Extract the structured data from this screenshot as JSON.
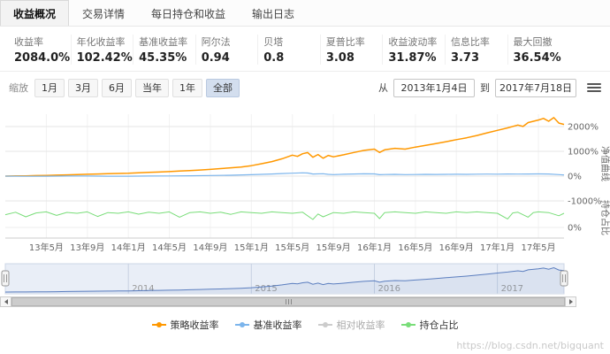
{
  "tabs": [
    {
      "label": "收益概况",
      "active": true
    },
    {
      "label": "交易详情"
    },
    {
      "label": "每日持仓和收益"
    },
    {
      "label": "输出日志"
    }
  ],
  "stats": [
    {
      "label": "收益率",
      "value": "2084.0%"
    },
    {
      "label": "年化收益率",
      "value": "102.42%"
    },
    {
      "label": "基准收益率",
      "value": "45.35%"
    },
    {
      "label": "阿尔法",
      "value": "0.94"
    },
    {
      "label": "贝塔",
      "value": "0.8"
    },
    {
      "label": "夏普比率",
      "value": "3.08"
    },
    {
      "label": "收益波动率",
      "value": "31.87%"
    },
    {
      "label": "信息比率",
      "value": "3.73"
    },
    {
      "label": "最大回撤",
      "value": "36.54%"
    }
  ],
  "toolbar": {
    "zoom_label": "缩放",
    "buttons": [
      {
        "label": "1月"
      },
      {
        "label": "3月"
      },
      {
        "label": "6月"
      },
      {
        "label": "当年"
      },
      {
        "label": "1年"
      },
      {
        "label": "全部",
        "selected": true
      }
    ],
    "from_label": "从",
    "from_value": "2013年1月4日",
    "to_label": "到",
    "to_value": "2017年7月18日"
  },
  "chart_data": {
    "type": "line",
    "x_unit": "months_since_2013_01",
    "x_range": [
      0,
      54.5
    ],
    "x_ticks": [
      {
        "m": 4,
        "label": "13年5月"
      },
      {
        "m": 8,
        "label": "13年9月"
      },
      {
        "m": 12,
        "label": "14年1月"
      },
      {
        "m": 16,
        "label": "14年5月"
      },
      {
        "m": 20,
        "label": "14年9月"
      },
      {
        "m": 24,
        "label": "15年1月"
      },
      {
        "m": 28,
        "label": "15年5月"
      },
      {
        "m": 32,
        "label": "15年9月"
      },
      {
        "m": 36,
        "label": "16年1月"
      },
      {
        "m": 40,
        "label": "16年5月"
      },
      {
        "m": 44,
        "label": "16年9月"
      },
      {
        "m": 48,
        "label": "17年1月"
      },
      {
        "m": 52,
        "label": "17年5月"
      }
    ],
    "y_axis_main": {
      "title": "净值曲线",
      "ticks": [
        {
          "v": 2000,
          "label": "2000%"
        },
        {
          "v": 1000,
          "label": "1000%"
        },
        {
          "v": 0,
          "label": "0%"
        },
        {
          "v": -1000,
          "label": "-1000%"
        }
      ]
    },
    "y_axis_position": {
      "title": "持仓占比",
      "ticks": [
        {
          "v": 0,
          "label": "0%"
        }
      ]
    },
    "series": [
      {
        "id": "strategy",
        "name": "策略收益率",
        "color": "#ff9800",
        "axis": "main",
        "width": 1.5,
        "points": [
          [
            0,
            0
          ],
          [
            1,
            6
          ],
          [
            2,
            12
          ],
          [
            3,
            20
          ],
          [
            4,
            28
          ],
          [
            5,
            38
          ],
          [
            6,
            50
          ],
          [
            7,
            62
          ],
          [
            8,
            74
          ],
          [
            9,
            86
          ],
          [
            10,
            96
          ],
          [
            11,
            106
          ],
          [
            12,
            116
          ],
          [
            13,
            132
          ],
          [
            14,
            150
          ],
          [
            15,
            166
          ],
          [
            16,
            182
          ],
          [
            17,
            202
          ],
          [
            18,
            226
          ],
          [
            19,
            248
          ],
          [
            20,
            272
          ],
          [
            21,
            302
          ],
          [
            22,
            334
          ],
          [
            23,
            368
          ],
          [
            24,
            420
          ],
          [
            25,
            500
          ],
          [
            26,
            585
          ],
          [
            27,
            700
          ],
          [
            28,
            845
          ],
          [
            28.5,
            795
          ],
          [
            29,
            905
          ],
          [
            29.5,
            950
          ],
          [
            30,
            760
          ],
          [
            30.5,
            870
          ],
          [
            31,
            720
          ],
          [
            31.5,
            835
          ],
          [
            32,
            780
          ],
          [
            33,
            860
          ],
          [
            34,
            955
          ],
          [
            35,
            1040
          ],
          [
            36,
            1090
          ],
          [
            36.5,
            955
          ],
          [
            37,
            1060
          ],
          [
            38,
            1120
          ],
          [
            39,
            1090
          ],
          [
            40,
            1170
          ],
          [
            41,
            1240
          ],
          [
            42,
            1315
          ],
          [
            43,
            1390
          ],
          [
            44,
            1470
          ],
          [
            45,
            1545
          ],
          [
            46,
            1640
          ],
          [
            47,
            1745
          ],
          [
            48,
            1845
          ],
          [
            49,
            1945
          ],
          [
            50,
            2060
          ],
          [
            50.5,
            2005
          ],
          [
            51,
            2160
          ],
          [
            52,
            2265
          ],
          [
            52.5,
            2330
          ],
          [
            53,
            2215
          ],
          [
            53.5,
            2360
          ],
          [
            54,
            2140
          ],
          [
            54.5,
            2084
          ]
        ]
      },
      {
        "id": "benchmark",
        "name": "基准收益率",
        "color": "#7cb5ec",
        "axis": "main",
        "width": 1.2,
        "points": [
          [
            0,
            0
          ],
          [
            2,
            -8
          ],
          [
            4,
            -4
          ],
          [
            6,
            2
          ],
          [
            8,
            5
          ],
          [
            10,
            -2
          ],
          [
            12,
            -5
          ],
          [
            14,
            3
          ],
          [
            16,
            8
          ],
          [
            18,
            14
          ],
          [
            20,
            24
          ],
          [
            22,
            36
          ],
          [
            24,
            56
          ],
          [
            25,
            70
          ],
          [
            26,
            86
          ],
          [
            27,
            102
          ],
          [
            28,
            118
          ],
          [
            29,
            132
          ],
          [
            29.5,
            126
          ],
          [
            30,
            86
          ],
          [
            31,
            96
          ],
          [
            31.5,
            72
          ],
          [
            32,
            62
          ],
          [
            33,
            74
          ],
          [
            34,
            86
          ],
          [
            35,
            94
          ],
          [
            36,
            88
          ],
          [
            36.5,
            58
          ],
          [
            37,
            64
          ],
          [
            38,
            70
          ],
          [
            39,
            62
          ],
          [
            40,
            66
          ],
          [
            41,
            70
          ],
          [
            42,
            68
          ],
          [
            43,
            72
          ],
          [
            44,
            74
          ],
          [
            45,
            72
          ],
          [
            46,
            78
          ],
          [
            47,
            82
          ],
          [
            48,
            80
          ],
          [
            49,
            84
          ],
          [
            50,
            82
          ],
          [
            51,
            86
          ],
          [
            52,
            90
          ],
          [
            53,
            84
          ],
          [
            54,
            62
          ],
          [
            54.5,
            45
          ]
        ]
      },
      {
        "id": "position",
        "name": "持仓占比",
        "color": "#79dd79",
        "axis": "position",
        "width": 1,
        "points": [
          [
            0,
            72
          ],
          [
            1,
            86
          ],
          [
            2,
            60
          ],
          [
            3,
            82
          ],
          [
            4,
            88
          ],
          [
            5,
            68
          ],
          [
            6,
            85
          ],
          [
            7,
            80
          ],
          [
            8,
            88
          ],
          [
            9,
            62
          ],
          [
            10,
            84
          ],
          [
            11,
            80
          ],
          [
            12,
            88
          ],
          [
            13,
            75
          ],
          [
            14,
            86
          ],
          [
            15,
            80
          ],
          [
            16,
            88
          ],
          [
            17,
            58
          ],
          [
            18,
            84
          ],
          [
            19,
            88
          ],
          [
            20,
            80
          ],
          [
            21,
            86
          ],
          [
            22,
            74
          ],
          [
            23,
            88
          ],
          [
            24,
            84
          ],
          [
            25,
            80
          ],
          [
            26,
            88
          ],
          [
            27,
            84
          ],
          [
            28,
            80
          ],
          [
            29,
            86
          ],
          [
            30,
            45
          ],
          [
            30.5,
            76
          ],
          [
            31,
            60
          ],
          [
            32,
            84
          ],
          [
            33,
            80
          ],
          [
            34,
            88
          ],
          [
            35,
            84
          ],
          [
            36,
            80
          ],
          [
            36.5,
            50
          ],
          [
            37,
            84
          ],
          [
            38,
            88
          ],
          [
            39,
            84
          ],
          [
            40,
            80
          ],
          [
            41,
            88
          ],
          [
            42,
            84
          ],
          [
            43,
            80
          ],
          [
            44,
            88
          ],
          [
            45,
            84
          ],
          [
            46,
            88
          ],
          [
            47,
            84
          ],
          [
            48,
            80
          ],
          [
            49,
            48
          ],
          [
            49.5,
            82
          ],
          [
            50,
            86
          ],
          [
            51,
            58
          ],
          [
            51.5,
            84
          ],
          [
            52,
            88
          ],
          [
            53,
            84
          ],
          [
            54,
            66
          ],
          [
            54.5,
            80
          ]
        ]
      }
    ],
    "navigator": {
      "series_color": "#5b7ebf",
      "years": [
        {
          "m": 12,
          "label": "2014"
        },
        {
          "m": 24,
          "label": "2015"
        },
        {
          "m": 36,
          "label": "2016"
        },
        {
          "m": 48,
          "label": "2017"
        }
      ]
    }
  },
  "legend": [
    {
      "label": "策略收益率",
      "color": "#ff9800"
    },
    {
      "label": "基准收益率",
      "color": "#7cb5ec"
    },
    {
      "label": "相对收益率",
      "color": "#cccccc",
      "disabled": true
    },
    {
      "label": "持仓占比",
      "color": "#79dd79"
    }
  ],
  "watermark": "https://blog.csdn.net/bigquant"
}
